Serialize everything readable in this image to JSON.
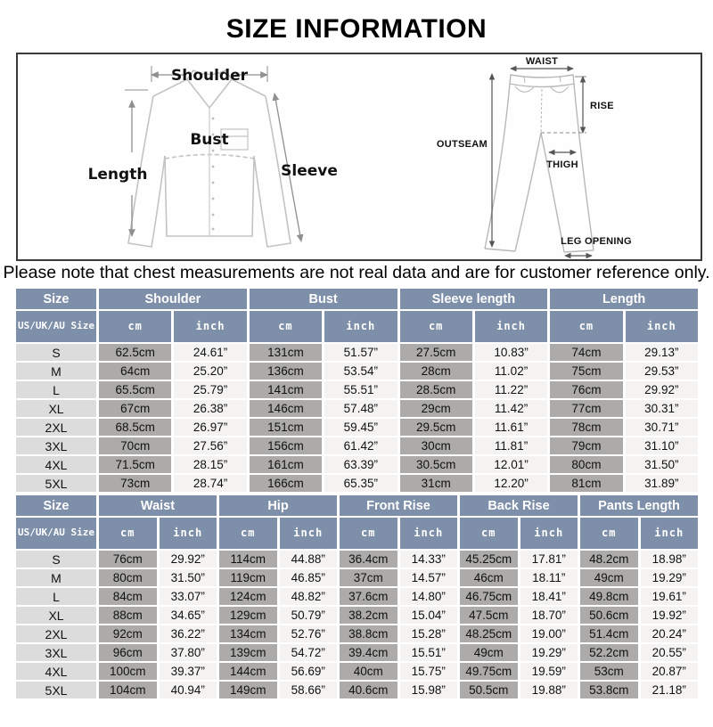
{
  "title": "SIZE INFORMATION",
  "note": "Please note that chest measurements are not real data and are for customer reference only.",
  "diagrams": {
    "shirt": {
      "shoulder": "Shoulder",
      "length": "Length",
      "bust": "Bust",
      "sleeve": "Sleeve"
    },
    "pants": {
      "waist": "WAIST",
      "rise": "RISE",
      "outseam": "OUTSEAM",
      "thigh": "THIGH",
      "leg_opening": "LEG OPENING"
    }
  },
  "colors": {
    "header_bg": "#7E8FA9",
    "size_col_bg": "#DCDCDC",
    "cm_col_bg": "#ACABA9",
    "inch_col_bg": "#F4F3F2"
  },
  "tables": [
    {
      "name": "tops",
      "size_header": "Size",
      "size_subheader": "US/UK/AU\nSize",
      "unit_labels": [
        "cm",
        "inch"
      ],
      "groups": [
        "Shoulder",
        "Bust",
        "Sleeve length",
        "Length"
      ],
      "rows": [
        {
          "size": "S",
          "values": [
            "62.5cm",
            "24.61”",
            "131cm",
            "51.57”",
            "27.5cm",
            "10.83”",
            "74cm",
            "29.13”"
          ]
        },
        {
          "size": "M",
          "values": [
            "64cm",
            "25.20”",
            "136cm",
            "53.54”",
            "28cm",
            "11.02”",
            "75cm",
            "29.53”"
          ]
        },
        {
          "size": "L",
          "values": [
            "65.5cm",
            "25.79”",
            "141cm",
            "55.51”",
            "28.5cm",
            "11.22”",
            "76cm",
            "29.92”"
          ]
        },
        {
          "size": "XL",
          "values": [
            "67cm",
            "26.38”",
            "146cm",
            "57.48”",
            "29cm",
            "11.42”",
            "77cm",
            "30.31”"
          ]
        },
        {
          "size": "2XL",
          "values": [
            "68.5cm",
            "26.97”",
            "151cm",
            "59.45”",
            "29.5cm",
            "11.61”",
            "78cm",
            "30.71”"
          ]
        },
        {
          "size": "3XL",
          "values": [
            "70cm",
            "27.56”",
            "156cm",
            "61.42”",
            "30cm",
            "11.81”",
            "79cm",
            "31.10”"
          ]
        },
        {
          "size": "4XL",
          "values": [
            "71.5cm",
            "28.15”",
            "161cm",
            "63.39”",
            "30.5cm",
            "12.01”",
            "80cm",
            "31.50”"
          ]
        },
        {
          "size": "5XL",
          "values": [
            "73cm",
            "28.74”",
            "166cm",
            "65.35”",
            "31cm",
            "12.20”",
            "81cm",
            "31.89”"
          ]
        }
      ]
    },
    {
      "name": "bottoms",
      "size_header": "Size",
      "size_subheader": "US/UK/AU\nSize",
      "unit_labels": [
        "cm",
        "inch"
      ],
      "groups": [
        "Waist",
        "Hip",
        "Front Rise",
        "Back Rise",
        "Pants Length"
      ],
      "rows": [
        {
          "size": "S",
          "values": [
            "76cm",
            "29.92”",
            "114cm",
            "44.88”",
            "36.4cm",
            "14.33”",
            "45.25cm",
            "17.81”",
            "48.2cm",
            "18.98”"
          ]
        },
        {
          "size": "M",
          "values": [
            "80cm",
            "31.50”",
            "119cm",
            "46.85”",
            "37cm",
            "14.57”",
            "46cm",
            "18.11”",
            "49cm",
            "19.29”"
          ]
        },
        {
          "size": "L",
          "values": [
            "84cm",
            "33.07”",
            "124cm",
            "48.82”",
            "37.6cm",
            "14.80”",
            "46.75cm",
            "18.41”",
            "49.8cm",
            "19.61”"
          ]
        },
        {
          "size": "XL",
          "values": [
            "88cm",
            "34.65”",
            "129cm",
            "50.79”",
            "38.2cm",
            "15.04”",
            "47.5cm",
            "18.70”",
            "50.6cm",
            "19.92”"
          ]
        },
        {
          "size": "2XL",
          "values": [
            "92cm",
            "36.22”",
            "134cm",
            "52.76”",
            "38.8cm",
            "15.28”",
            "48.25cm",
            "19.00”",
            "51.4cm",
            "20.24”"
          ]
        },
        {
          "size": "3XL",
          "values": [
            "96cm",
            "37.80”",
            "139cm",
            "54.72”",
            "39.4cm",
            "15.51”",
            "49cm",
            "19.29”",
            "52.2cm",
            "20.55”"
          ]
        },
        {
          "size": "4XL",
          "values": [
            "100cm",
            "39.37”",
            "144cm",
            "56.69”",
            "40cm",
            "15.75”",
            "49.75cm",
            "19.59”",
            "53cm",
            "20.87”"
          ]
        },
        {
          "size": "5XL",
          "values": [
            "104cm",
            "40.94”",
            "149cm",
            "58.66”",
            "40.6cm",
            "15.98”",
            "50.5cm",
            "19.88”",
            "53.8cm",
            "21.18”"
          ]
        }
      ]
    }
  ]
}
